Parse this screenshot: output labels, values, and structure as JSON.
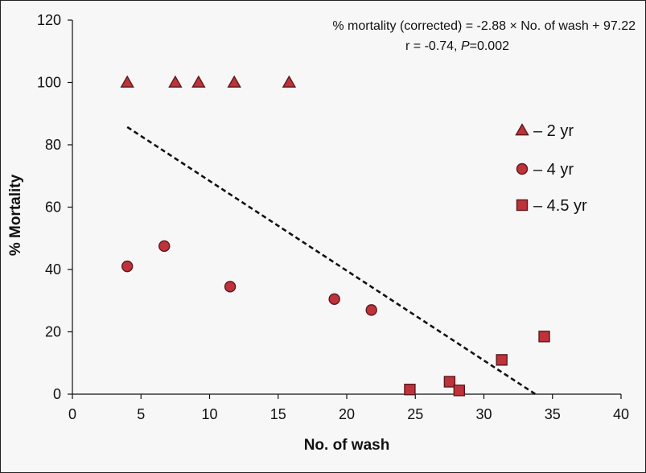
{
  "chart_data": {
    "type": "scatter",
    "title": "",
    "xlabel": "No. of wash",
    "ylabel": "% Mortality",
    "xlim": [
      0,
      40
    ],
    "ylim": [
      0,
      120
    ],
    "xticks": [
      0,
      5,
      10,
      15,
      20,
      25,
      30,
      35,
      40
    ],
    "yticks": [
      0,
      20,
      40,
      60,
      80,
      100,
      120
    ],
    "grid": false,
    "legend_position": "right",
    "annotation": {
      "line1": "% mortality (corrected) = -2.88 × No. of wash + 97.22",
      "line2_prefix": "r = -0.74, ",
      "line2_p": "P",
      "line2_suffix": "=0.002"
    },
    "marker_color": "#c0323a",
    "marker_edge_color": "#5a1a1e",
    "series": [
      {
        "name": "– 2 yr",
        "marker": "triangle",
        "x": [
          4,
          7.5,
          9.2,
          11.8,
          15.8
        ],
        "y": [
          100,
          100,
          100,
          100,
          100
        ]
      },
      {
        "name": "– 4 yr",
        "marker": "circle",
        "x": [
          4,
          6.7,
          11.5,
          19.1,
          21.8
        ],
        "y": [
          41,
          47.5,
          34.5,
          30.5,
          27
        ]
      },
      {
        "name": "– 4.5 yr",
        "marker": "square",
        "x": [
          24.6,
          27.5,
          28.2,
          31.3,
          34.4
        ],
        "y": [
          1.5,
          4,
          1.2,
          11,
          18.5
        ]
      }
    ],
    "trendline": {
      "style": "dashed",
      "slope": -2.88,
      "intercept": 97.22,
      "x": [
        4,
        33.8
      ]
    }
  }
}
